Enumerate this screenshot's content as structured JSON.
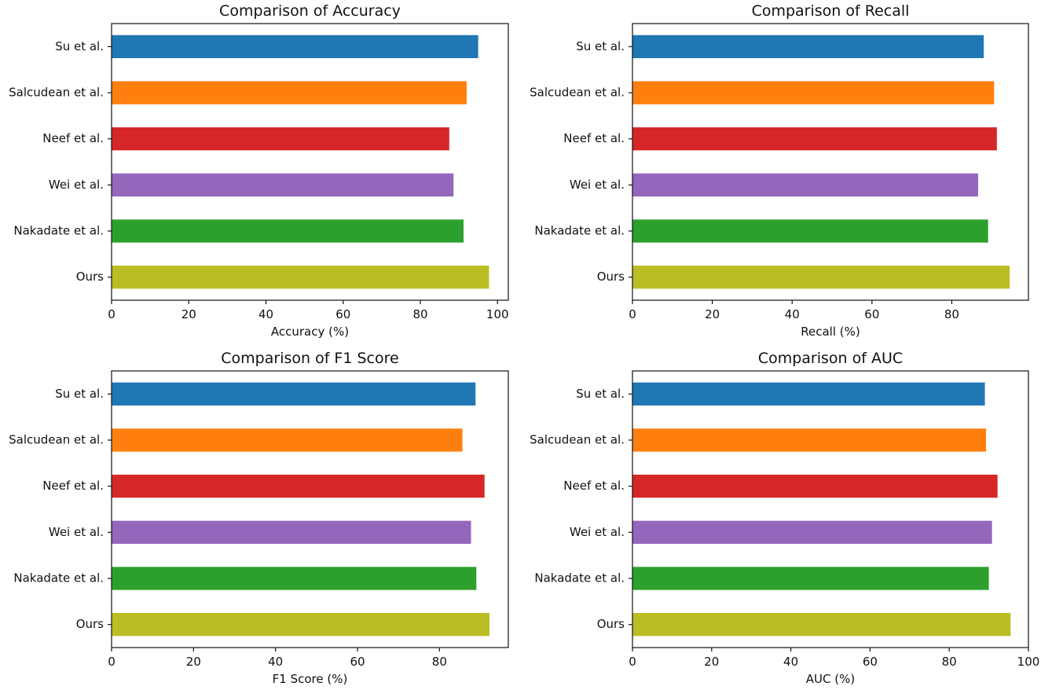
{
  "chart_data": [
    {
      "type": "bar",
      "orientation": "horizontal",
      "title": "Comparison of Accuracy",
      "xlabel": "Accuracy (%)",
      "ylabel": "",
      "categories": [
        "Su et al.",
        "Salcudean et al.",
        "Neef et al.",
        "Wei et al.",
        "Nakadate et al.",
        "Ours"
      ],
      "values": [
        95.0,
        92.0,
        87.5,
        88.6,
        91.2,
        97.8
      ],
      "colors": [
        "#1f77b4",
        "#ff7f0e",
        "#d62728",
        "#9467bd",
        "#2ca02c",
        "#bcbd22"
      ],
      "xlim": [
        0,
        102.8
      ],
      "xticks": [
        "0",
        "20",
        "40",
        "60",
        "80",
        "100"
      ],
      "xtick_values": [
        0,
        20,
        40,
        60,
        80,
        100
      ],
      "grid": false
    },
    {
      "type": "bar",
      "orientation": "horizontal",
      "title": "Comparison of Recall",
      "xlabel": "Recall (%)",
      "ylabel": "",
      "categories": [
        "Su et al.",
        "Salcudean et al.",
        "Neef et al.",
        "Wei et al.",
        "Nakadate et al.",
        "Ours"
      ],
      "values": [
        88.0,
        90.6,
        91.3,
        86.6,
        89.1,
        94.5
      ],
      "colors": [
        "#1f77b4",
        "#ff7f0e",
        "#d62728",
        "#9467bd",
        "#2ca02c",
        "#bcbd22"
      ],
      "xlim": [
        0,
        99.2
      ],
      "xticks": [
        "0",
        "20",
        "40",
        "60",
        "80"
      ],
      "xtick_values": [
        0,
        20,
        40,
        60,
        80
      ],
      "grid": false
    },
    {
      "type": "bar",
      "orientation": "horizontal",
      "title": "Comparison of F1 Score",
      "xlabel": "F1 Score (%)",
      "ylabel": "",
      "categories": [
        "Su et al.",
        "Salcudean et al.",
        "Neef et al.",
        "Wei et al.",
        "Nakadate et al.",
        "Ours"
      ],
      "values": [
        88.8,
        85.6,
        91.0,
        87.7,
        89.0,
        92.2
      ],
      "colors": [
        "#1f77b4",
        "#ff7f0e",
        "#d62728",
        "#9467bd",
        "#2ca02c",
        "#bcbd22"
      ],
      "xlim": [
        0,
        96.8
      ],
      "xticks": [
        "0",
        "20",
        "40",
        "60",
        "80"
      ],
      "xtick_values": [
        0,
        20,
        40,
        60,
        80
      ],
      "grid": false
    },
    {
      "type": "bar",
      "orientation": "horizontal",
      "title": "Comparison of AUC",
      "xlabel": "AUC (%)",
      "ylabel": "",
      "categories": [
        "Su et al.",
        "Salcudean et al.",
        "Neef et al.",
        "Wei et al.",
        "Nakadate et al.",
        "Ours"
      ],
      "values": [
        89.0,
        89.3,
        92.2,
        90.8,
        90.0,
        95.5
      ],
      "colors": [
        "#1f77b4",
        "#ff7f0e",
        "#d62728",
        "#9467bd",
        "#2ca02c",
        "#bcbd22"
      ],
      "xlim": [
        0,
        100
      ],
      "xticks": [
        "0",
        "20",
        "40",
        "60",
        "80",
        "100"
      ],
      "xtick_values": [
        0,
        20,
        40,
        60,
        80,
        100
      ],
      "grid": false
    }
  ]
}
